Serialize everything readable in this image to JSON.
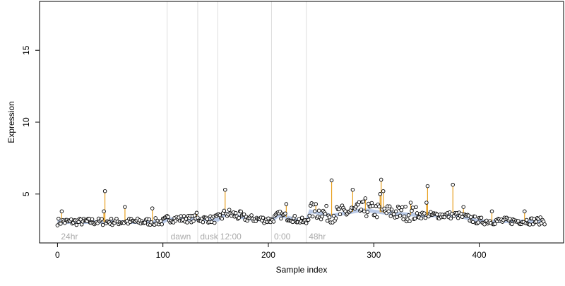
{
  "chart_data": {
    "type": "scatter",
    "xlabel": "Sample index",
    "ylabel": "Expression",
    "xlim": [
      -17,
      480
    ],
    "ylim": [
      1.6,
      18.4
    ],
    "x_ticks": [
      0,
      100,
      200,
      300,
      400
    ],
    "y_ticks": [
      5,
      10,
      15
    ],
    "grid": false,
    "legend": "none",
    "region_boundaries": [
      104,
      133,
      152,
      203,
      236
    ],
    "region_labels": [
      {
        "text": "24hr",
        "x": 2
      },
      {
        "text": "dawn",
        "x": 106
      },
      {
        "text": "dusk",
        "x": 134
      },
      {
        "text": "12:00",
        "x": 153
      },
      {
        "text": "0:00",
        "x": 204
      },
      {
        "text": "48hr",
        "x": 237
      }
    ],
    "fitted_baseline": [
      [
        0,
        3.05
      ],
      [
        100,
        3.05
      ],
      [
        104,
        3.25
      ],
      [
        133,
        3.25
      ],
      [
        152,
        3.2
      ],
      [
        160,
        3.65
      ],
      [
        180,
        3.3
      ],
      [
        203,
        3.15
      ],
      [
        210,
        3.55
      ],
      [
        236,
        3.0
      ],
      [
        240,
        3.8
      ],
      [
        260,
        3.5
      ],
      [
        290,
        3.9
      ],
      [
        310,
        3.7
      ],
      [
        350,
        3.5
      ],
      [
        380,
        3.5
      ],
      [
        400,
        3.1
      ],
      [
        460,
        3.1
      ]
    ],
    "highlighted_points": [
      [
        4,
        3.8
      ],
      [
        44,
        3.8
      ],
      [
        45,
        5.2
      ],
      [
        64,
        4.1
      ],
      [
        90,
        4.0
      ],
      [
        132,
        3.7
      ],
      [
        159,
        5.3
      ],
      [
        217,
        4.3
      ],
      [
        245,
        4.3
      ],
      [
        260,
        5.95
      ],
      [
        280,
        5.3
      ],
      [
        292,
        4.7
      ],
      [
        306,
        5.0
      ],
      [
        307,
        6.0
      ],
      [
        309,
        5.2
      ],
      [
        335,
        4.4
      ],
      [
        350,
        4.4
      ],
      [
        351,
        5.55
      ],
      [
        375,
        5.65
      ],
      [
        385,
        4.1
      ],
      [
        412,
        3.8
      ],
      [
        443,
        3.8
      ]
    ],
    "series": [
      {
        "seed": 7,
        "x_start": 0,
        "x_end": 462,
        "baseline": 3.05,
        "spread": 0.25
      }
    ],
    "colors": {
      "point_fill": "#ffffff",
      "point_stroke": "#000000",
      "highlight_stem": "#e8a020",
      "baseline": "#8ea8d8",
      "region_line": "#dddddd",
      "region_label": "#aaaaaa"
    }
  }
}
